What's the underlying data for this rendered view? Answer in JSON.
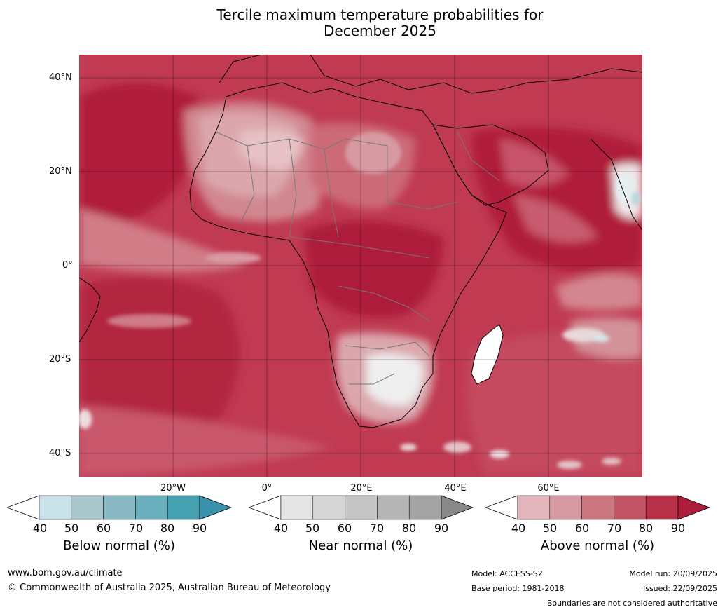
{
  "title_line1": "Tercile maximum temperature probabilities for",
  "title_line2": "December 2025",
  "latitudes": [
    "40°N",
    "20°N",
    "0°",
    "20°S",
    "40°S"
  ],
  "longitudes": [
    "20°W",
    "0°",
    "20°E",
    "40°E",
    "60°E"
  ],
  "colorbars": [
    {
      "label": "Below normal (%)",
      "ticks": [
        "40",
        "50",
        "60",
        "70",
        "80",
        "90"
      ],
      "colors": [
        "#ffffff",
        "#c9e1e8",
        "#a8c5cb",
        "#8ab8c3",
        "#6aafbe",
        "#45a0b0",
        "#3a93ad"
      ]
    },
    {
      "label": "Near normal (%)",
      "ticks": [
        "40",
        "50",
        "60",
        "70",
        "80",
        "90"
      ],
      "colors": [
        "#ffffff",
        "#e5e5e5",
        "#d6d6d6",
        "#c6c6c6",
        "#b5b5b5",
        "#a3a3a3",
        "#8a8a8a"
      ]
    },
    {
      "label": "Above normal (%)",
      "ticks": [
        "40",
        "50",
        "60",
        "70",
        "80",
        "90"
      ],
      "colors": [
        "#ffffff",
        "#e2b6bc",
        "#d79aa2",
        "#cc7680",
        "#c25565",
        "#b83148",
        "#ad1c3a"
      ]
    }
  ],
  "footer": {
    "website": "www.bom.gov.au/climate",
    "copyright": "© Commonwealth of Australia 2025, Australian Bureau of Meteorology",
    "model": "Model: ACCESS-S2",
    "base_period": "Base period: 1981-2018",
    "model_run": "Model run: 20/09/2025",
    "issued": "Issued: 22/09/2025",
    "disclaimer": "Boundaries are not considered authoritative"
  }
}
